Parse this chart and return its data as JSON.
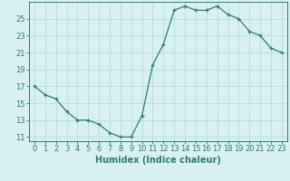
{
  "x": [
    0,
    1,
    2,
    3,
    4,
    5,
    6,
    7,
    8,
    9,
    10,
    11,
    12,
    13,
    14,
    15,
    16,
    17,
    18,
    19,
    20,
    21,
    22,
    23
  ],
  "y": [
    17,
    16,
    15.5,
    14,
    13,
    13,
    12.5,
    11.5,
    11,
    11,
    13.5,
    19.5,
    22,
    26,
    26.5,
    26,
    26,
    26.5,
    25.5,
    25,
    23.5,
    23,
    21.5,
    21
  ],
  "line_color": "#2e7d6e",
  "marker": "+",
  "bg_color": "#d8f0f0",
  "grid_color": "#b8dede",
  "xlabel": "Humidex (Indice chaleur)",
  "ylabel": "",
  "xlim": [
    -0.5,
    23.5
  ],
  "ylim": [
    10.5,
    27
  ],
  "xticks": [
    0,
    1,
    2,
    3,
    4,
    5,
    6,
    7,
    8,
    9,
    10,
    11,
    12,
    13,
    14,
    15,
    16,
    17,
    18,
    19,
    20,
    21,
    22,
    23
  ],
  "yticks": [
    11,
    13,
    15,
    17,
    19,
    21,
    23,
    25
  ],
  "tick_fontsize": 6.0,
  "xlabel_fontsize": 7.0
}
